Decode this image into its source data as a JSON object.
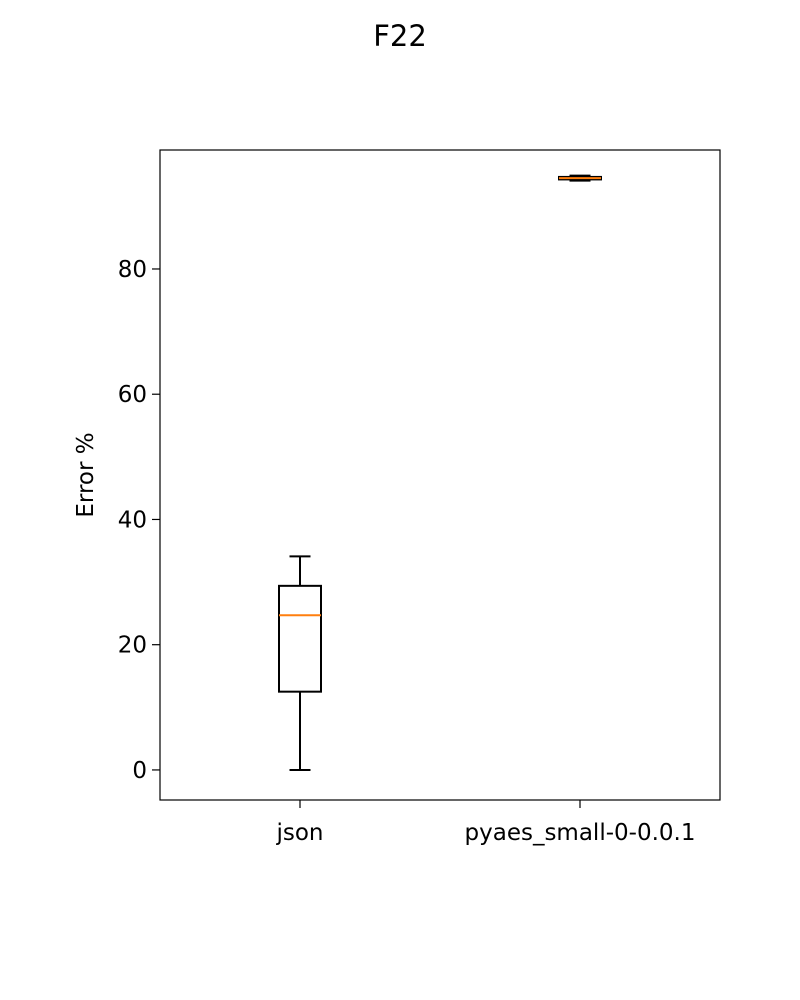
{
  "chart_data": {
    "type": "box",
    "title": "F22",
    "xlabel": "",
    "ylabel": "Error %",
    "ylim": [
      -4.8,
      99
    ],
    "yticks": [
      0,
      20,
      40,
      60,
      80
    ],
    "ytick_labels": [
      "0",
      "20",
      "40",
      "60",
      "80"
    ],
    "categories": [
      "json",
      "pyaes_small-0-0.0.1"
    ],
    "boxes": [
      {
        "category": "json",
        "whisker_low": 0,
        "q1": 12.5,
        "median": 24.7,
        "q3": 29.4,
        "whisker_high": 34.1
      },
      {
        "category": "pyaes_small-0-0.0.1",
        "whisker_low": 94.1,
        "q1": 94.3,
        "median": 94.5,
        "q3": 94.7,
        "whisker_high": 94.9
      }
    ],
    "grid": false,
    "colors": {
      "box": "#000000",
      "median": "#ff7f0e",
      "axes": "#000000"
    }
  }
}
